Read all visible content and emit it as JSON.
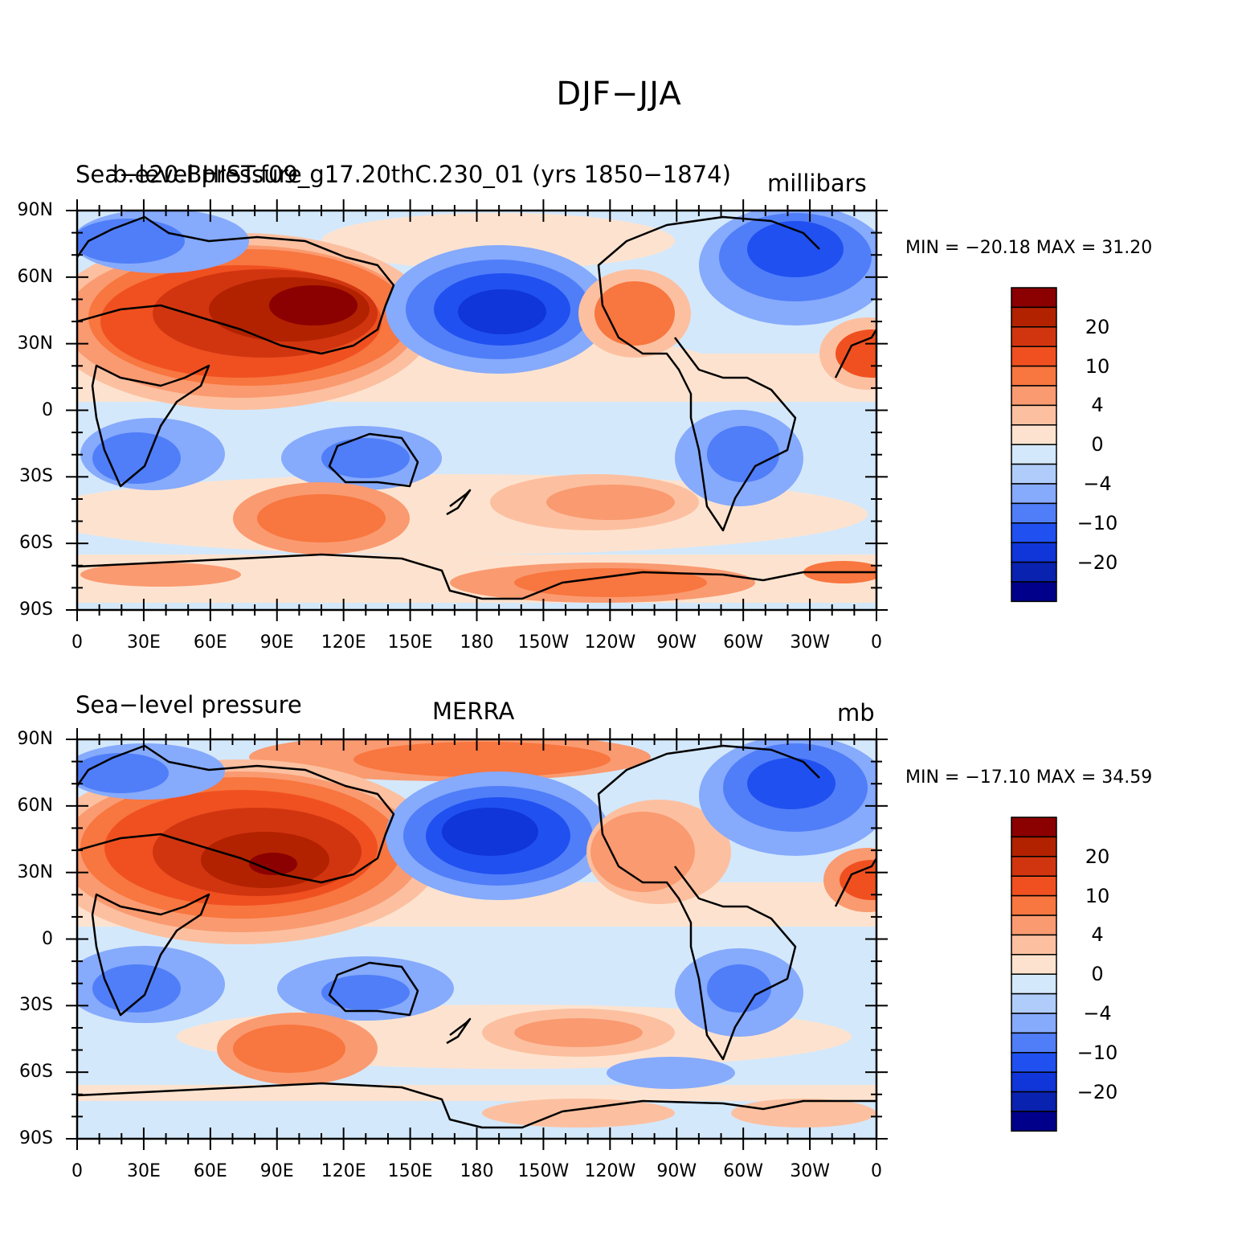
{
  "figure": {
    "title": "DJF−JJA"
  },
  "panels": [
    {
      "left_title": "Sea−level pressure",
      "center_title": "b.e20.BHIST.f09_g17.20thC.230_01 (yrs 1850−1874)",
      "units": "millibars",
      "min_max": "MIN = −20.18  MAX =   31.20"
    },
    {
      "left_title": "Sea−level pressure",
      "center_title": "MERRA",
      "units": "mb",
      "min_max": "MIN = −17.10  MAX =   34.59"
    }
  ],
  "axes": {
    "lat_labels": [
      "90N",
      "60N",
      "30N",
      "0",
      "30S",
      "60S",
      "90S"
    ],
    "lon_labels": [
      "0",
      "30E",
      "60E",
      "90E",
      "120E",
      "150E",
      "180",
      "150W",
      "120W",
      "90W",
      "60W",
      "30W",
      "0"
    ]
  },
  "colorbar": {
    "tick_labels": [
      "20",
      "10",
      "4",
      "0",
      "−4",
      "−10",
      "−20"
    ],
    "colors": [
      "#8b0000",
      "#b22200",
      "#d13510",
      "#f05020",
      "#f8763f",
      "#fa9a70",
      "#fcc0a0",
      "#fde3cf",
      "#d4e8fb",
      "#b0ccfb",
      "#86aafc",
      "#507ef8",
      "#2050f0",
      "#1035d8",
      "#0a22b0",
      "#00008b"
    ]
  },
  "palette": {
    "dark_red": "#8b0000",
    "red": "#d13510",
    "orange": "#f8763f",
    "salmon": "#fa9a70",
    "peach": "#fcc0a0",
    "cream": "#fde3cf",
    "pale_blue": "#d4e8fb",
    "light_blue": "#b0ccfb",
    "mid_blue": "#86aafc",
    "blue": "#507ef8",
    "strong_blue": "#2050f0",
    "dark_blue": "#1035d8"
  }
}
